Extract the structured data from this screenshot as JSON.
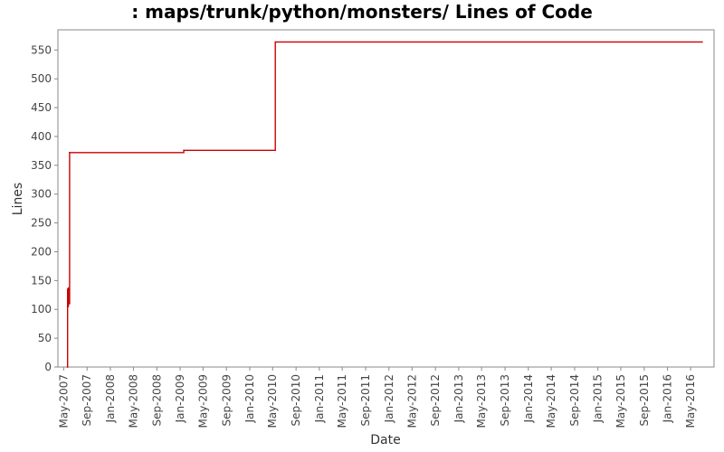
{
  "chart_data": {
    "type": "line",
    "title": ": maps/trunk/python/monsters/ Lines of Code",
    "xlabel": "Date",
    "ylabel": "Lines",
    "ylim": [
      0,
      585
    ],
    "yticks": [
      0,
      50,
      100,
      150,
      200,
      250,
      300,
      350,
      400,
      450,
      500,
      550
    ],
    "xlim": [
      "2007-04-01",
      "2016-09-01"
    ],
    "xticks": [
      "May-2007",
      "Sep-2007",
      "Jan-2008",
      "May-2008",
      "Sep-2008",
      "Jan-2009",
      "May-2009",
      "Sep-2009",
      "Jan-2010",
      "May-2010",
      "Sep-2010",
      "Jan-2011",
      "May-2011",
      "Sep-2011",
      "Jan-2012",
      "May-2012",
      "Sep-2012",
      "Jan-2013",
      "May-2013",
      "Sep-2013",
      "Jan-2014",
      "May-2014",
      "Sep-2014",
      "Jan-2015",
      "May-2015",
      "Sep-2015",
      "Jan-2016",
      "May-2016"
    ],
    "xtick_dates": [
      "2007-05-01",
      "2007-09-01",
      "2008-01-01",
      "2008-05-01",
      "2008-09-01",
      "2009-01-01",
      "2009-05-01",
      "2009-09-01",
      "2010-01-01",
      "2010-05-01",
      "2010-09-01",
      "2011-01-01",
      "2011-05-01",
      "2011-09-01",
      "2012-01-01",
      "2012-05-01",
      "2012-09-01",
      "2013-01-01",
      "2013-05-01",
      "2013-09-01",
      "2014-01-01",
      "2014-05-01",
      "2014-09-01",
      "2015-01-01",
      "2015-05-01",
      "2015-09-01",
      "2016-01-01",
      "2016-05-01"
    ],
    "grid": false,
    "series": [
      {
        "color": "#cc0000",
        "step": true,
        "points": [
          {
            "x": "2007-05-20",
            "y": 0
          },
          {
            "x": "2007-05-22",
            "y": 135
          },
          {
            "x": "2007-05-24",
            "y": 105
          },
          {
            "x": "2007-05-26",
            "y": 137
          },
          {
            "x": "2007-05-28",
            "y": 110
          },
          {
            "x": "2007-06-01",
            "y": 372
          },
          {
            "x": "2009-01-20",
            "y": 376
          },
          {
            "x": "2010-05-15",
            "y": 564
          },
          {
            "x": "2016-07-01",
            "y": 564
          }
        ]
      }
    ]
  }
}
